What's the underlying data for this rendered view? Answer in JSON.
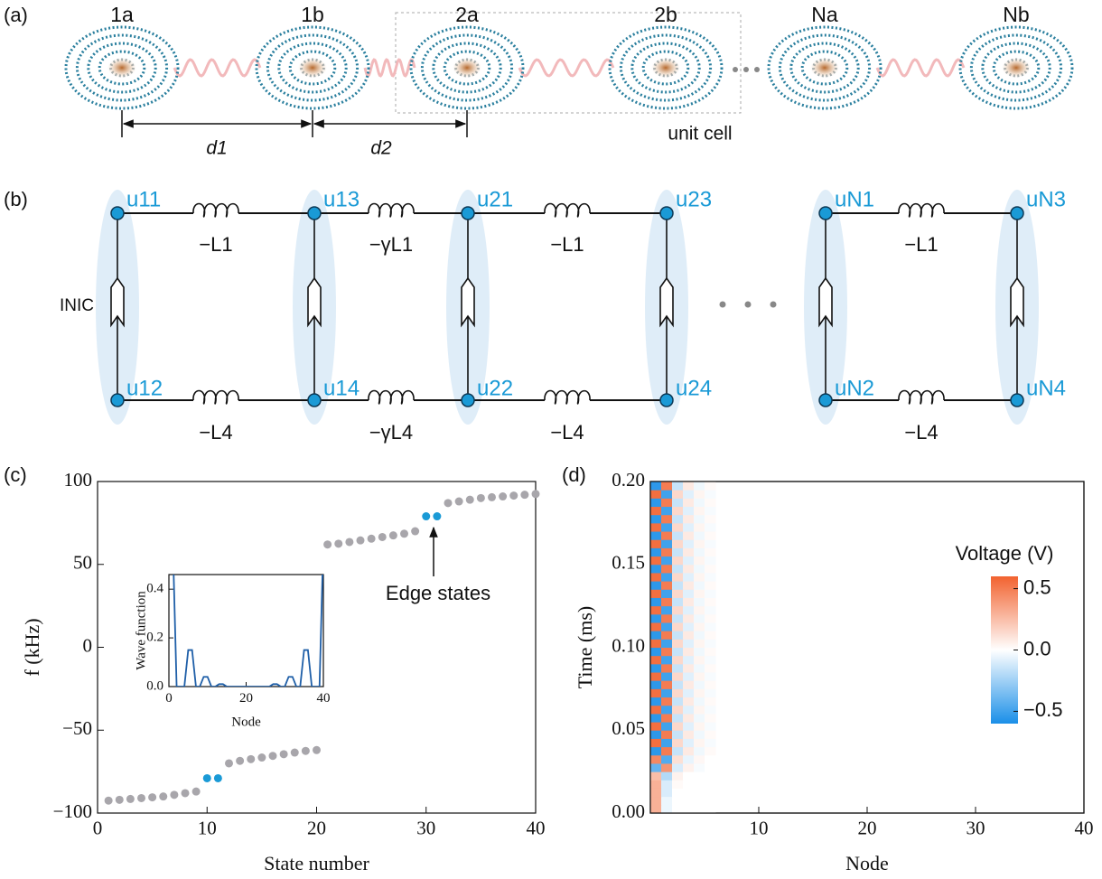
{
  "panel_a": {
    "label": "(a)",
    "sites": [
      "1a",
      "1b",
      "2a",
      "2b",
      "Na",
      "Nb"
    ],
    "distances": [
      "d1",
      "d2"
    ],
    "unit_cell": "unit cell"
  },
  "panel_b": {
    "label": "(b)",
    "nodes_top": [
      "u11",
      "u13",
      "u21",
      "u23",
      "uN1",
      "uN3"
    ],
    "nodes_bottom": [
      "u12",
      "u14",
      "u22",
      "u24",
      "uN2",
      "uN4"
    ],
    "inductors_top": [
      "−L1",
      "−γL1",
      "−L1",
      "−L1"
    ],
    "inductors_bottom": [
      "−L4",
      "−γL4",
      "−L4",
      "−L4"
    ],
    "element": "INIC"
  },
  "chart_data": [
    {
      "type": "scatter",
      "label": "(c)",
      "xlabel": "State number",
      "ylabel": "f (kHz)",
      "annotation": "Edge states",
      "xlim": [
        0,
        40
      ],
      "ylim": [
        -100,
        100
      ],
      "xticks": [
        0,
        10,
        20,
        30,
        40
      ],
      "yticks": [
        {
          "value": -100,
          "label": "−100"
        },
        {
          "value": -50,
          "label": "−50"
        },
        0,
        50,
        100
      ],
      "series": [
        {
          "color": "#a8a6ab",
          "x": [
            1,
            2,
            3,
            4,
            5,
            6,
            7,
            8,
            9,
            12,
            13,
            14,
            15,
            16,
            17,
            18,
            19,
            20,
            21,
            22,
            23,
            24,
            25,
            26,
            27,
            28,
            29,
            32,
            33,
            34,
            35,
            36,
            37,
            38,
            39,
            40
          ],
          "values": [
            -92.5,
            -92,
            -91.5,
            -91,
            -90.5,
            -90,
            -89,
            -88,
            -87,
            -70,
            -68.5,
            -67.5,
            -66.5,
            -65.5,
            -64.5,
            -63.5,
            -62.5,
            -62,
            62,
            62.5,
            63.5,
            64.5,
            65.5,
            66.5,
            67.5,
            68.5,
            70,
            87,
            88,
            89,
            90,
            90.5,
            91,
            91.5,
            92,
            92.5
          ]
        },
        {
          "color": "#1a9ad6",
          "x": [
            10,
            11,
            30,
            31
          ],
          "values": [
            -79,
            -79,
            79,
            79
          ]
        }
      ]
    },
    {
      "type": "line",
      "xlabel": "Node",
      "ylabel": "Wave function",
      "xlim": [
        0,
        40
      ],
      "ylim": [
        0,
        0.46
      ],
      "xticks": [
        0,
        20,
        40
      ],
      "yticks": [
        {
          "value": 0,
          "label": "0.0"
        },
        {
          "value": 0.2,
          "label": "0.2"
        },
        {
          "value": 0.4,
          "label": "0.4"
        }
      ],
      "color": "#1f5fa8",
      "x": [
        1,
        2,
        3,
        4,
        5,
        6,
        7,
        8,
        9,
        10,
        11,
        12,
        13,
        14,
        15,
        16,
        17,
        18,
        19,
        20,
        21,
        22,
        23,
        24,
        25,
        26,
        27,
        28,
        29,
        30,
        31,
        32,
        33,
        34,
        35,
        36,
        37,
        38,
        39,
        40
      ],
      "values": [
        0.6,
        0,
        0,
        0,
        0.15,
        0.15,
        0,
        0,
        0.04,
        0.04,
        0,
        0,
        0.01,
        0.01,
        0,
        0,
        0,
        0,
        0,
        0,
        0,
        0,
        0,
        0,
        0,
        0,
        0.01,
        0.01,
        0,
        0,
        0.04,
        0.04,
        0,
        0,
        0.15,
        0.15,
        0,
        0,
        0,
        0.6
      ]
    },
    {
      "type": "heatmap",
      "label": "(d)",
      "xlabel": "Node",
      "ylabel": "Time (ms)",
      "colorbar_label": "Voltage (V)",
      "xlim": [
        0,
        40
      ],
      "ylim": [
        0,
        0.2
      ],
      "zlim": [
        -0.6,
        0.6
      ],
      "xticks": [
        10,
        20,
        30,
        40
      ],
      "yticks": [
        {
          "value": 0,
          "label": "0.00"
        },
        {
          "value": 0.05,
          "label": "0.05"
        },
        {
          "value": 0.1,
          "label": "0.10"
        },
        {
          "value": 0.15,
          "label": "0.15"
        },
        {
          "value": 0.2,
          "label": "0.20"
        }
      ],
      "zticks": [
        0.5,
        {
          "value": 0,
          "label": "0.0"
        },
        {
          "value": -0.5,
          "label": "−0.5"
        }
      ],
      "x": [
        1,
        2,
        3,
        4,
        5,
        6
      ],
      "y": [
        0.0025,
        0.0075,
        0.0125,
        0.0175,
        0.0225,
        0.0275,
        0.0325,
        0.0375,
        0.0425,
        0.0475,
        0.0525,
        0.0575,
        0.0625,
        0.0675,
        0.0725,
        0.0775,
        0.0825,
        0.0875,
        0.0925,
        0.0975,
        0.1025,
        0.1075,
        0.1125,
        0.1175,
        0.1225,
        0.1275,
        0.1325,
        0.1375,
        0.1425,
        0.1475,
        0.1525,
        0.1575,
        0.1625,
        0.1675,
        0.1725,
        0.1775,
        0.1825,
        0.1875,
        0.1925,
        0.1975
      ],
      "z": [
        [
          0.3,
          -0.05,
          0,
          0,
          0,
          0
        ],
        [
          0.3,
          -0.05,
          0,
          0,
          0,
          0
        ],
        [
          0.3,
          -0.1,
          0,
          0,
          0,
          0
        ],
        [
          0.3,
          -0.1,
          0.02,
          0,
          0,
          0
        ],
        [
          0.25,
          -0.2,
          0.05,
          0,
          0,
          0
        ],
        [
          -0.4,
          0.4,
          -0.1,
          0.05,
          -0.02,
          0
        ],
        [
          0.45,
          -0.45,
          0.12,
          -0.06,
          0.03,
          0
        ],
        [
          -0.55,
          0.5,
          -0.15,
          0.08,
          -0.04,
          0.02
        ],
        [
          0.55,
          -0.5,
          0.15,
          -0.08,
          0.04,
          -0.02
        ],
        [
          -0.55,
          0.5,
          -0.15,
          0.08,
          -0.04,
          0.02
        ],
        [
          0.55,
          -0.5,
          0.15,
          -0.08,
          0.04,
          -0.02
        ],
        [
          -0.55,
          0.5,
          -0.15,
          0.08,
          -0.04,
          0.02
        ],
        [
          0.55,
          -0.5,
          0.15,
          -0.08,
          0.04,
          -0.02
        ],
        [
          -0.55,
          0.5,
          -0.15,
          0.08,
          -0.04,
          0.02
        ],
        [
          0.55,
          -0.5,
          0.15,
          -0.08,
          0.04,
          -0.02
        ],
        [
          -0.55,
          0.5,
          -0.15,
          0.08,
          -0.04,
          0.02
        ],
        [
          0.55,
          -0.5,
          0.15,
          -0.08,
          0.04,
          -0.02
        ],
        [
          -0.55,
          0.5,
          -0.15,
          0.08,
          -0.04,
          0.02
        ],
        [
          0.55,
          -0.5,
          0.15,
          -0.08,
          0.04,
          -0.02
        ],
        [
          -0.55,
          0.5,
          -0.15,
          0.08,
          -0.04,
          0.02
        ],
        [
          0.55,
          -0.5,
          0.15,
          -0.08,
          0.04,
          -0.02
        ],
        [
          -0.55,
          0.5,
          -0.15,
          0.08,
          -0.04,
          0.02
        ],
        [
          0.55,
          -0.5,
          0.15,
          -0.08,
          0.04,
          -0.02
        ],
        [
          -0.55,
          0.5,
          -0.15,
          0.08,
          -0.04,
          0.02
        ],
        [
          0.55,
          -0.5,
          0.15,
          -0.08,
          0.04,
          -0.02
        ],
        [
          -0.55,
          0.5,
          -0.15,
          0.08,
          -0.04,
          0.02
        ],
        [
          0.55,
          -0.5,
          0.15,
          -0.08,
          0.04,
          -0.02
        ],
        [
          -0.55,
          0.5,
          -0.15,
          0.08,
          -0.04,
          0.02
        ],
        [
          0.55,
          -0.5,
          0.15,
          -0.08,
          0.04,
          -0.02
        ],
        [
          -0.55,
          0.5,
          -0.15,
          0.08,
          -0.04,
          0.02
        ],
        [
          0.55,
          -0.5,
          0.15,
          -0.08,
          0.04,
          -0.02
        ],
        [
          -0.55,
          0.5,
          -0.15,
          0.08,
          -0.04,
          0.02
        ],
        [
          0.55,
          -0.5,
          0.15,
          -0.08,
          0.04,
          -0.02
        ],
        [
          -0.55,
          0.5,
          -0.15,
          0.08,
          -0.04,
          0.02
        ],
        [
          0.55,
          -0.5,
          0.15,
          -0.08,
          0.04,
          -0.02
        ],
        [
          -0.55,
          0.5,
          -0.15,
          0.08,
          -0.04,
          0.02
        ],
        [
          0.55,
          -0.5,
          0.15,
          -0.08,
          0.04,
          -0.02
        ],
        [
          -0.55,
          0.5,
          -0.15,
          0.08,
          -0.04,
          0.02
        ],
        [
          0.55,
          -0.5,
          0.15,
          -0.08,
          0.04,
          -0.02
        ],
        [
          -0.55,
          0.5,
          -0.15,
          0.08,
          -0.04,
          0.02
        ]
      ]
    }
  ]
}
